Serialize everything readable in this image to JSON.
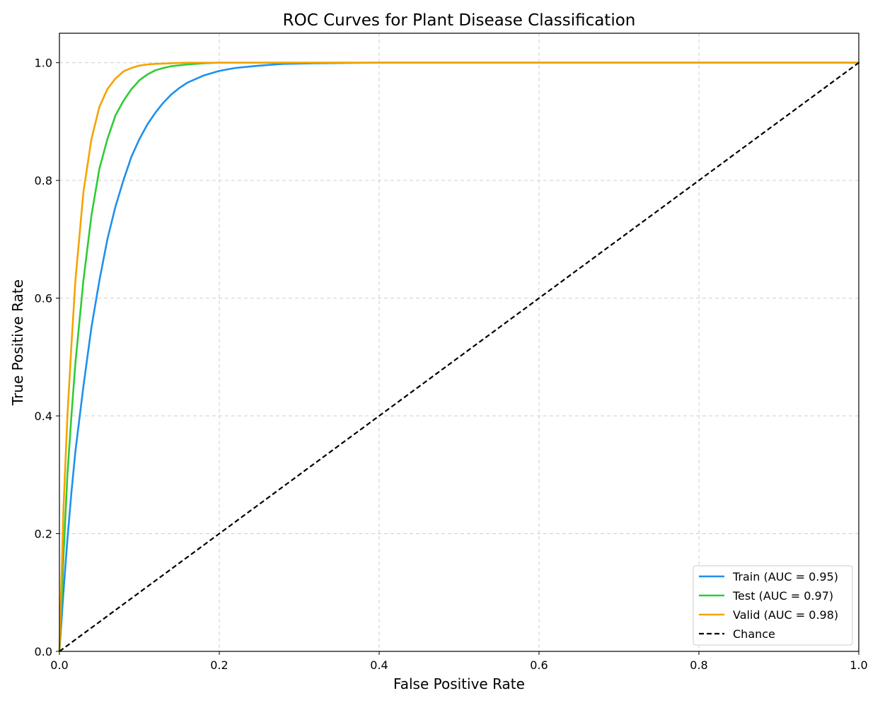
{
  "chart_data": {
    "type": "line",
    "title": "ROC Curves for Plant Disease Classification",
    "xlabel": "False Positive Rate",
    "ylabel": "True Positive Rate",
    "xlim": [
      0,
      1
    ],
    "ylim": [
      0,
      1.05
    ],
    "x_ticks": [
      "0.0",
      "0.2",
      "0.4",
      "0.6",
      "0.8",
      "1.0"
    ],
    "y_ticks": [
      "0.0",
      "0.2",
      "0.4",
      "0.6",
      "0.8",
      "1.0"
    ],
    "grid": true,
    "legend_position": "bottom-right",
    "series": [
      {
        "name": "Train (AUC = 0.95)",
        "color": "#1e90ee",
        "style": "solid",
        "x": [
          0,
          0.005,
          0.01,
          0.015,
          0.02,
          0.03,
          0.04,
          0.05,
          0.06,
          0.07,
          0.08,
          0.09,
          0.1,
          0.11,
          0.12,
          0.13,
          0.14,
          0.15,
          0.16,
          0.18,
          0.2,
          0.22,
          0.25,
          0.28,
          0.32,
          0.4,
          0.5,
          0.7,
          1.0
        ],
        "y": [
          0,
          0.1,
          0.19,
          0.27,
          0.34,
          0.45,
          0.55,
          0.63,
          0.7,
          0.755,
          0.8,
          0.84,
          0.87,
          0.895,
          0.915,
          0.932,
          0.946,
          0.957,
          0.966,
          0.978,
          0.986,
          0.991,
          0.995,
          0.998,
          0.999,
          1.0,
          1.0,
          1.0,
          1.0
        ]
      },
      {
        "name": "Test (AUC = 0.97)",
        "color": "#2ecc35",
        "style": "solid",
        "x": [
          0,
          0.005,
          0.01,
          0.015,
          0.02,
          0.03,
          0.04,
          0.05,
          0.06,
          0.07,
          0.08,
          0.09,
          0.1,
          0.11,
          0.12,
          0.13,
          0.14,
          0.16,
          0.18,
          0.2,
          0.25,
          0.3,
          0.4,
          0.6,
          1.0
        ],
        "y": [
          0,
          0.16,
          0.3,
          0.4,
          0.49,
          0.63,
          0.74,
          0.82,
          0.87,
          0.91,
          0.935,
          0.955,
          0.97,
          0.98,
          0.987,
          0.991,
          0.994,
          0.997,
          0.999,
          1.0,
          1.0,
          1.0,
          1.0,
          1.0,
          1.0
        ]
      },
      {
        "name": "Valid (AUC = 0.98)",
        "color": "#f5a300",
        "style": "solid",
        "x": [
          0,
          0.005,
          0.01,
          0.015,
          0.02,
          0.03,
          0.04,
          0.05,
          0.06,
          0.07,
          0.08,
          0.09,
          0.1,
          0.11,
          0.12,
          0.14,
          0.16,
          0.2,
          0.3,
          0.5,
          1.0
        ],
        "y": [
          0,
          0.24,
          0.4,
          0.52,
          0.63,
          0.78,
          0.87,
          0.925,
          0.955,
          0.973,
          0.985,
          0.991,
          0.995,
          0.997,
          0.998,
          0.999,
          1.0,
          1.0,
          1.0,
          1.0,
          1.0
        ]
      },
      {
        "name": "Chance",
        "color": "#000000",
        "style": "dashed",
        "x": [
          0,
          1
        ],
        "y": [
          0,
          1
        ]
      }
    ]
  }
}
